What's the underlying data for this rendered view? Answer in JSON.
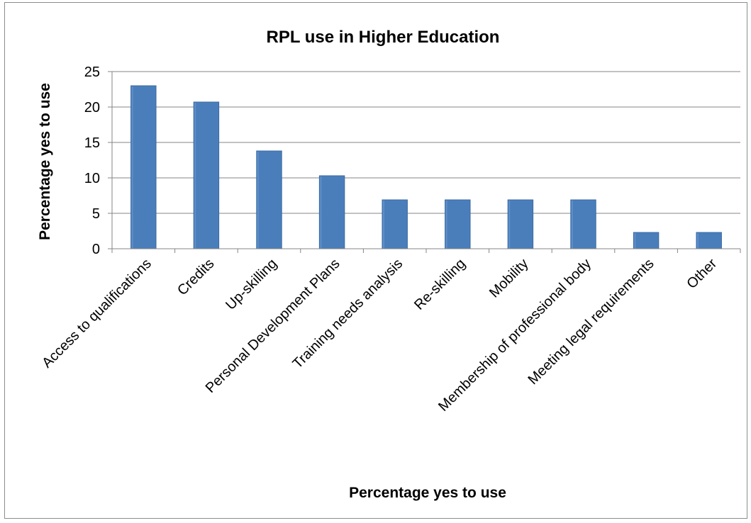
{
  "chart_data": {
    "type": "bar",
    "title": "RPL use in Higher Education",
    "xlabel": "Percentage yes to use",
    "ylabel": "Percentage yes to use",
    "categories": [
      "Access to qualifications",
      "Credits",
      "Up-skilling",
      "Personal Development Plans",
      "Training needs analysis",
      "Re-skilling",
      "Mobility",
      "Membership of professional body",
      "Meeting legal requirements",
      "Other"
    ],
    "values": [
      23,
      20.7,
      13.8,
      10.3,
      6.9,
      6.9,
      6.9,
      6.9,
      2.3,
      2.3
    ],
    "ylim": [
      0,
      25
    ],
    "yticks": [
      "0",
      "5",
      "10",
      "15",
      "20",
      "25"
    ],
    "grid": true,
    "legend": "none",
    "colors": {
      "bar": "#4a7ebb",
      "bar_edge": "#3a6aa3",
      "grid": "#868686",
      "axis": "#868686"
    }
  }
}
